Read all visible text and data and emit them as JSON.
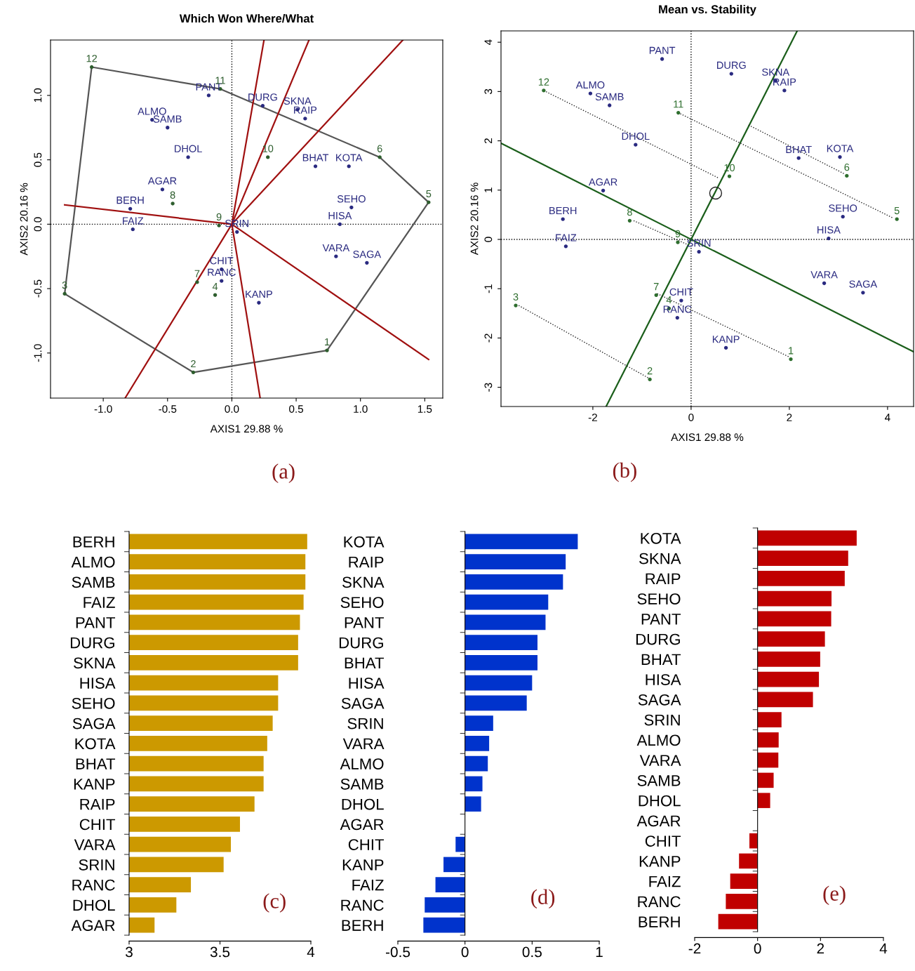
{
  "chart_data": [
    {
      "type": "scatter",
      "title": "Which Won Where/What",
      "xlabel": "AXIS1 29.88 %",
      "ylabel": "AXIS2 20.16 %",
      "xlim": [
        -1.41,
        1.64
      ],
      "ylim": [
        -1.35,
        1.43
      ],
      "xticks": [
        {
          "value": -1,
          "label": "-1.0"
        },
        {
          "value": -0.5,
          "label": "-0.5"
        },
        {
          "value": 0,
          "label": "0.0"
        },
        {
          "value": 0.5,
          "label": "0.5"
        },
        {
          "value": 1,
          "label": "1.0"
        },
        {
          "value": 1.5,
          "label": "1.5"
        }
      ],
      "yticks": [
        {
          "value": -1,
          "label": "-1.0"
        },
        {
          "value": -0.5,
          "label": "-0.5"
        },
        {
          "value": 0,
          "label": "0.0"
        },
        {
          "value": 0.5,
          "label": "0.5"
        },
        {
          "value": 1,
          "label": "1.0"
        }
      ],
      "series": [
        {
          "type": "line",
          "color": "#000000",
          "line_style": "dotted",
          "x": [
            0,
            0
          ],
          "values": [
            -1.35,
            1.43
          ]
        },
        {
          "type": "line",
          "color": "#000000",
          "line_style": "dotted",
          "x": [
            -1.41,
            1.64
          ],
          "values": [
            0,
            0
          ]
        },
        {
          "type": "line",
          "color": "#555555",
          "line_style": "solid",
          "x": [
            -1.3,
            -1.09,
            -0.09,
            1.15,
            1.53
          ],
          "values": [
            -0.54,
            1.22,
            1.05,
            0.52,
            0.17
          ]
        },
        {
          "type": "line",
          "color": "#555555",
          "line_style": "solid",
          "x": [
            -1.3,
            -0.3,
            0.74,
            1.53
          ],
          "values": [
            -0.54,
            -1.15,
            -0.98,
            0.17
          ]
        },
        {
          "type": "line",
          "color": "#a01010",
          "line_style": "solid",
          "x": [
            -1.3,
            0,
            1.53
          ],
          "values": [
            0.15,
            0,
            -1.05
          ]
        },
        {
          "type": "line",
          "color": "#a01010",
          "line_style": "solid",
          "x": [
            -0.83,
            0,
            1.33
          ],
          "values": [
            -1.35,
            0,
            1.43
          ]
        },
        {
          "type": "line",
          "color": "#a01010",
          "line_style": "solid",
          "x": [
            0.22,
            0,
            0.25
          ],
          "values": [
            -1.35,
            0,
            1.43
          ]
        },
        {
          "type": "line",
          "color": "#a01010",
          "line_style": "solid",
          "x": [
            0,
            0.6
          ],
          "values": [
            0,
            1.43
          ]
        },
        {
          "type": "scatter",
          "marker": "circle",
          "color": "#2a2a80",
          "x": [
            -0.18,
            0.24,
            0.51,
            0.57,
            -0.62,
            -0.5,
            -0.34,
            0.65,
            0.91,
            -0.54,
            -0.79,
            0.93,
            -0.77,
            0.84,
            0.04,
            0.81,
            1.05,
            -0.08,
            -0.08,
            0.21
          ],
          "values": [
            1.0,
            0.92,
            0.89,
            0.82,
            0.81,
            0.75,
            0.52,
            0.45,
            0.45,
            0.27,
            0.12,
            0.13,
            -0.04,
            0.0,
            -0.06,
            -0.25,
            -0.3,
            -0.35,
            -0.44,
            -0.61
          ]
        },
        {
          "type": "scatter",
          "marker": "circle",
          "color": "#2e5e2e",
          "x": [
            -1.09,
            -0.09,
            0.28,
            1.15,
            1.53,
            -0.46,
            -0.1,
            -0.27,
            -0.13,
            -1.3,
            -0.3,
            0.74
          ],
          "values": [
            1.22,
            1.05,
            0.52,
            0.52,
            0.17,
            0.16,
            -0.01,
            -0.45,
            -0.55,
            -0.54,
            -1.15,
            -0.98
          ]
        }
      ],
      "annotations": [
        "(a)",
        {
          "text": "PANT",
          "x": -0.18,
          "y": 1.0
        },
        {
          "text": "DURG",
          "x": 0.24,
          "y": 0.92
        },
        {
          "text": "SKNA",
          "x": 0.51,
          "y": 0.89
        },
        {
          "text": "RAIP",
          "x": 0.57,
          "y": 0.82
        },
        {
          "text": "ALMO",
          "x": -0.62,
          "y": 0.81
        },
        {
          "text": "SAMB",
          "x": -0.5,
          "y": 0.75
        },
        {
          "text": "DHOL",
          "x": -0.34,
          "y": 0.52
        },
        {
          "text": "BHAT",
          "x": 0.65,
          "y": 0.45
        },
        {
          "text": "KOTA",
          "x": 0.91,
          "y": 0.45
        },
        {
          "text": "AGAR",
          "x": -0.54,
          "y": 0.27
        },
        {
          "text": "BERH",
          "x": -0.79,
          "y": 0.12
        },
        {
          "text": "SEHO",
          "x": 0.93,
          "y": 0.13
        },
        {
          "text": "FAIZ",
          "x": -0.77,
          "y": -0.04
        },
        {
          "text": "HISA",
          "x": 0.84,
          "y": 0.0
        },
        {
          "text": "SRIN",
          "x": 0.04,
          "y": -0.06
        },
        {
          "text": "VARA",
          "x": 0.81,
          "y": -0.25
        },
        {
          "text": "SAGA",
          "x": 1.05,
          "y": -0.3
        },
        {
          "text": "CHIT",
          "x": -0.08,
          "y": -0.35
        },
        {
          "text": "RANC",
          "x": -0.08,
          "y": -0.44
        },
        {
          "text": "KANP",
          "x": 0.21,
          "y": -0.61
        },
        {
          "text": "12",
          "x": -1.09,
          "y": 1.22
        },
        {
          "text": "11",
          "x": -0.09,
          "y": 1.05
        },
        {
          "text": "10",
          "x": 0.28,
          "y": 0.52
        },
        {
          "text": "6",
          "x": 1.15,
          "y": 0.52
        },
        {
          "text": "5",
          "x": 1.53,
          "y": 0.17
        },
        {
          "text": "8",
          "x": -0.46,
          "y": 0.16
        },
        {
          "text": "9",
          "x": -0.1,
          "y": -0.01
        },
        {
          "text": "7",
          "x": -0.27,
          "y": -0.45
        },
        {
          "text": "4",
          "x": -0.13,
          "y": -0.55
        },
        {
          "text": "3",
          "x": -1.3,
          "y": -0.54
        },
        {
          "text": "2",
          "x": -0.3,
          "y": -1.15
        },
        {
          "text": "1",
          "x": 0.74,
          "y": -0.98
        }
      ]
    },
    {
      "type": "scatter",
      "title": "Mean vs. Stability",
      "xlabel": "AXIS1 29.88 %",
      "ylabel": "AXIS2 20.16 %",
      "xlim": [
        -3.87,
        4.53
      ],
      "ylim": [
        -3.39,
        4.23
      ],
      "xticks": [
        -2,
        0,
        2,
        4
      ],
      "yticks": [
        -3,
        -2,
        -1,
        0,
        1,
        2,
        3,
        4
      ],
      "series": [
        {
          "type": "line",
          "color": "#000000",
          "line_style": "dotted",
          "x": [
            0,
            0
          ],
          "values": [
            -3.39,
            4.23
          ]
        },
        {
          "type": "line",
          "color": "#000000",
          "line_style": "dotted",
          "x": [
            -3.87,
            4.53
          ],
          "values": [
            0,
            0
          ]
        },
        {
          "type": "line",
          "color": "#1a5e1a",
          "line_style": "solid",
          "x": [
            -3.87,
            4.53
          ],
          "values": [
            1.95,
            -2.28
          ]
        },
        {
          "type": "line",
          "color": "#1a5e1a",
          "line_style": "solid",
          "x": [
            -1.73,
            2.16
          ],
          "values": [
            -3.39,
            4.23
          ]
        },
        {
          "type": "line",
          "color": "#222222",
          "line_style": "dotted",
          "x": [
            -3.0,
            0.57
          ],
          "values": [
            3.02,
            1.24
          ]
        },
        {
          "type": "line",
          "color": "#222222",
          "line_style": "dotted",
          "x": [
            -0.22,
            4.12
          ],
          "values": [
            2.55,
            0.43
          ]
        },
        {
          "type": "line",
          "color": "#222222",
          "line_style": "dotted",
          "x": [
            1.17,
            3.12
          ],
          "values": [
            2.32,
            1.33
          ]
        },
        {
          "type": "line",
          "color": "#222222",
          "line_style": "dotted",
          "x": [
            -1.17,
            -0.06
          ],
          "values": [
            0.38,
            -0.11
          ]
        },
        {
          "type": "line",
          "color": "#222222",
          "line_style": "dotted",
          "x": [
            -0.69,
            2.01
          ],
          "values": [
            -1.1,
            -2.39
          ]
        },
        {
          "type": "line",
          "color": "#222222",
          "line_style": "dotted",
          "x": [
            -3.51,
            -0.87
          ],
          "values": [
            -1.34,
            -2.81
          ]
        },
        {
          "type": "scatter",
          "marker": "circle",
          "color": "#222222",
          "x": [
            0.5
          ],
          "values": [
            0.94
          ]
        },
        {
          "type": "scatter",
          "marker": "circle",
          "color": "#2a2a80",
          "x": [
            -0.59,
            0.82,
            1.72,
            1.9,
            -2.05,
            -1.66,
            -1.13,
            2.19,
            3.03,
            -1.79,
            -2.61,
            3.09,
            -2.55,
            2.8,
            0.16,
            2.71,
            3.5,
            -0.2,
            -0.28,
            0.71
          ],
          "values": [
            3.66,
            3.36,
            3.22,
            3.02,
            2.96,
            2.72,
            1.92,
            1.65,
            1.67,
            0.99,
            0.41,
            0.46,
            -0.14,
            0.02,
            -0.25,
            -0.89,
            -1.08,
            -1.24,
            -1.59,
            -2.2
          ]
        },
        {
          "type": "scatter",
          "marker": "circle",
          "color": "#2e6e2e",
          "x": [
            -3.0,
            -0.26,
            0.78,
            3.17,
            4.19,
            -1.25,
            -0.27,
            -0.71,
            -0.45,
            -3.57,
            -0.84,
            2.03
          ],
          "values": [
            3.02,
            2.57,
            1.28,
            1.29,
            0.41,
            0.38,
            -0.06,
            -1.13,
            -1.4,
            -1.34,
            -2.84,
            -2.43
          ]
        }
      ],
      "annotations": [
        "(b)",
        {
          "text": "PANT",
          "x": -0.59,
          "y": 3.66
        },
        {
          "text": "DURG",
          "x": 0.82,
          "y": 3.36
        },
        {
          "text": "SKNA",
          "x": 1.72,
          "y": 3.22
        },
        {
          "text": "RAIP",
          "x": 1.9,
          "y": 3.02
        },
        {
          "text": "ALMO",
          "x": -2.05,
          "y": 2.96
        },
        {
          "text": "SAMB",
          "x": -1.66,
          "y": 2.72
        },
        {
          "text": "DHOL",
          "x": -1.13,
          "y": 1.92
        },
        {
          "text": "BHAT",
          "x": 2.19,
          "y": 1.65
        },
        {
          "text": "KOTA",
          "x": 3.03,
          "y": 1.67
        },
        {
          "text": "AGAR",
          "x": -1.79,
          "y": 0.99
        },
        {
          "text": "BERH",
          "x": -2.61,
          "y": 0.41
        },
        {
          "text": "SEHO",
          "x": 3.09,
          "y": 0.46
        },
        {
          "text": "FAIZ",
          "x": -2.55,
          "y": -0.14
        },
        {
          "text": "HISA",
          "x": 2.8,
          "y": 0.02
        },
        {
          "text": "SRIN",
          "x": 0.16,
          "y": -0.25
        },
        {
          "text": "VARA",
          "x": 2.71,
          "y": -0.89
        },
        {
          "text": "SAGA",
          "x": 3.5,
          "y": -1.08
        },
        {
          "text": "CHIT",
          "x": -0.2,
          "y": -1.24
        },
        {
          "text": "RANC",
          "x": -0.28,
          "y": -1.59
        },
        {
          "text": "KANP",
          "x": 0.71,
          "y": -2.2
        },
        {
          "text": "12",
          "x": -3.0,
          "y": 3.02
        },
        {
          "text": "11",
          "x": -0.26,
          "y": 2.57
        },
        {
          "text": "10",
          "x": 0.78,
          "y": 1.28
        },
        {
          "text": "6",
          "x": 3.17,
          "y": 1.29
        },
        {
          "text": "5",
          "x": 4.19,
          "y": 0.41
        },
        {
          "text": "8",
          "x": -1.25,
          "y": 0.38
        },
        {
          "text": "9",
          "x": -0.27,
          "y": -0.06
        },
        {
          "text": "7",
          "x": -0.71,
          "y": -1.13
        },
        {
          "text": "4",
          "x": -0.45,
          "y": -1.4
        },
        {
          "text": "3",
          "x": -3.57,
          "y": -1.34
        },
        {
          "text": "2",
          "x": -0.84,
          "y": -2.84
        },
        {
          "text": "1",
          "x": 2.03,
          "y": -2.43
        }
      ]
    },
    {
      "type": "bar",
      "orientation": "horizontal",
      "color": "#cc9900",
      "xlim": [
        3,
        4
      ],
      "xticks": [
        3,
        3.5,
        4
      ],
      "annotations": [
        "(c)"
      ],
      "categories": [
        "BERH",
        "ALMO",
        "SAMB",
        "FAIZ",
        "PANT",
        "DURG",
        "SKNA",
        "HISA",
        "SEHO",
        "SAGA",
        "KOTA",
        "BHAT",
        "KANP",
        "RAIP",
        "CHIT",
        "VARA",
        "SRIN",
        "RANC",
        "DHOL",
        "AGAR"
      ],
      "values": [
        3.98,
        3.97,
        3.97,
        3.96,
        3.94,
        3.93,
        3.93,
        3.82,
        3.82,
        3.79,
        3.76,
        3.74,
        3.74,
        3.69,
        3.61,
        3.56,
        3.52,
        3.34,
        3.26,
        3.14
      ]
    },
    {
      "type": "bar",
      "orientation": "horizontal",
      "color": "#0033cc",
      "xlim": [
        -0.5,
        1
      ],
      "xticks": [
        -0.5,
        0,
        0.5,
        1
      ],
      "annotations": [
        "(d)"
      ],
      "categories": [
        "KOTA",
        "RAIP",
        "SKNA",
        "SEHO",
        "PANT",
        "DURG",
        "BHAT",
        "HISA",
        "SAGA",
        "SRIN",
        "VARA",
        "ALMO",
        "SAMB",
        "DHOL",
        "AGAR",
        "CHIT",
        "KANP",
        "FAIZ",
        "RANC",
        "BERH"
      ],
      "values": [
        0.84,
        0.75,
        0.73,
        0.62,
        0.6,
        0.54,
        0.54,
        0.5,
        0.46,
        0.21,
        0.18,
        0.17,
        0.13,
        0.12,
        0.0,
        -0.07,
        -0.16,
        -0.22,
        -0.3,
        -0.31
      ]
    },
    {
      "type": "bar",
      "orientation": "horizontal",
      "color": "#c00000",
      "xlim": [
        -2,
        4
      ],
      "xticks": [
        -2,
        0,
        2,
        4
      ],
      "annotations": [
        "(e)"
      ],
      "categories": [
        "KOTA",
        "SKNA",
        "RAIP",
        "SEHO",
        "PANT",
        "DURG",
        "BHAT",
        "HISA",
        "SAGA",
        "SRIN",
        "ALMO",
        "VARA",
        "SAMB",
        "DHOL",
        "AGAR",
        "CHIT",
        "KANP",
        "FAIZ",
        "RANC",
        "BERH"
      ],
      "values": [
        3.15,
        2.88,
        2.77,
        2.35,
        2.34,
        2.14,
        1.99,
        1.95,
        1.76,
        0.76,
        0.67,
        0.66,
        0.51,
        0.4,
        0.0,
        -0.26,
        -0.59,
        -0.87,
        -1.01,
        -1.25
      ]
    }
  ]
}
